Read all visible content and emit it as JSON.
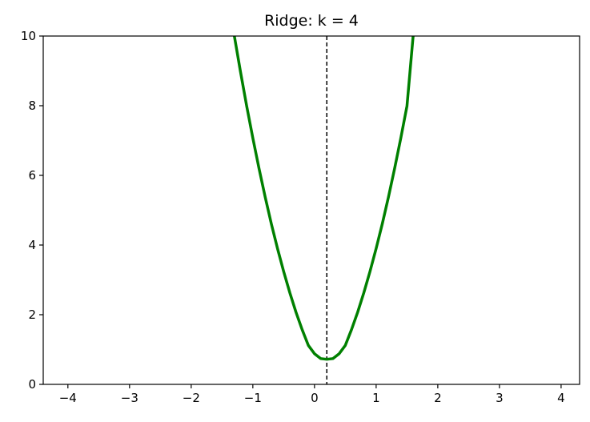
{
  "chart_data": {
    "type": "line",
    "title": "Ridge: k = 4",
    "xlabel": "",
    "ylabel": "",
    "xlim": [
      -4.4,
      4.3
    ],
    "ylim": [
      0,
      10
    ],
    "x_ticks": [
      -4,
      -3,
      -2,
      -1,
      0,
      1,
      2,
      3,
      4
    ],
    "x_tick_labels": [
      "−4",
      "−3",
      "−2",
      "−1",
      "0",
      "1",
      "2",
      "3",
      "4"
    ],
    "y_ticks": [
      0,
      2,
      4,
      6,
      8,
      10
    ],
    "y_tick_labels": [
      "0",
      "2",
      "4",
      "6",
      "8",
      "10"
    ],
    "grid": false,
    "legend": false,
    "series": [
      {
        "color": "#008000",
        "style": "solid",
        "x": [
          -1.3,
          -1.2,
          -1.1,
          -1.0,
          -0.9,
          -0.8,
          -0.7,
          -0.6,
          -0.5,
          -0.4,
          -0.3,
          -0.2,
          -0.1,
          0.0,
          0.1,
          0.2,
          0.3,
          0.4,
          0.5,
          0.6,
          0.7,
          0.8,
          0.9,
          1.0,
          1.1,
          1.2,
          1.3,
          1.4,
          1.5,
          1.6
        ],
        "y": [
          10.0,
          8.97,
          7.99,
          7.07,
          6.2,
          5.38,
          4.61,
          3.9,
          3.24,
          2.63,
          2.07,
          1.57,
          1.12,
          0.88,
          0.74,
          0.72,
          0.74,
          0.88,
          1.12,
          1.57,
          2.07,
          2.63,
          3.24,
          3.9,
          4.61,
          5.38,
          6.2,
          7.07,
          7.99,
          10.0
        ]
      }
    ],
    "reference_lines": [
      {
        "orientation": "vertical",
        "x": 0.2,
        "color": "#000000",
        "style": "dashed"
      }
    ]
  }
}
